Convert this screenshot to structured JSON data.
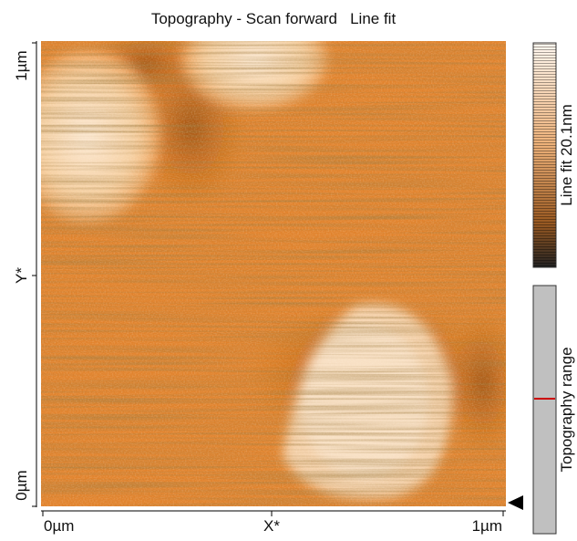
{
  "title": "Topography - Scan forward   Line fit",
  "axes": {
    "y_top": "1µm",
    "y_mid": "Y*",
    "y_bottom": "0µm",
    "x_left": "0µm",
    "x_mid": "X*",
    "x_right": "1µm"
  },
  "colorbar": {
    "label": "Line fit 20.1nm"
  },
  "range_bar": {
    "label": "Topography range"
  }
}
